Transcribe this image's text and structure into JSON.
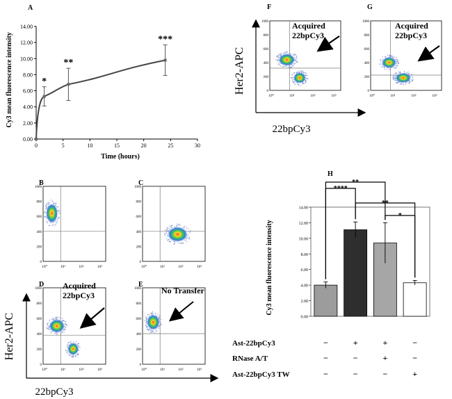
{
  "chart_data": [
    {
      "panel": "A",
      "type": "line",
      "x": [
        0,
        1.5,
        6,
        24
      ],
      "values": [
        0,
        5.3,
        6.8,
        9.8
      ],
      "errors": [
        0,
        1.2,
        2.0,
        1.9
      ],
      "significance": [
        "",
        "*",
        "**",
        "***"
      ],
      "xlabel": "Time (hours)",
      "ylabel": "Cy3 mean fluorescence intensity",
      "xlim": [
        0,
        30
      ],
      "ylim": [
        0,
        14
      ],
      "x_ticks": [
        "0",
        "5",
        "10",
        "15",
        "20",
        "25",
        "30"
      ],
      "y_ticks": [
        "0.00",
        "2.00",
        "4.00",
        "6.00",
        "8.00",
        "10.00",
        "12.00",
        "14.00"
      ]
    },
    {
      "panel": "H",
      "type": "bar",
      "categories": [
        "Ast-22bpCy3 (-), RNase A/T (-), TW (-)",
        "Ast-22bpCy3 (+)",
        "Ast-22bpCy3 (+) + RNase A/T",
        "Ast-22bpCy3 TW"
      ],
      "values": [
        4.0,
        11.1,
        9.4,
        4.3
      ],
      "errors": [
        0.4,
        1.0,
        2.6,
        0.3
      ],
      "colors": [
        "#9c9c9c",
        "#2e2e2e",
        "#a6a6a6",
        "#ffffff"
      ],
      "ylabel": "Cy3 mean fluorescence intensity",
      "ylim": [
        0,
        14
      ],
      "y_ticks": [
        "0.00",
        "2.00",
        "4.00",
        "6.00",
        "8.00",
        "10.00",
        "12.00",
        "14.00"
      ],
      "comparisons": [
        {
          "from": 0,
          "to": 2,
          "label": "**"
        },
        {
          "from": 0,
          "to": 1,
          "label": "****"
        },
        {
          "from": 1,
          "to": 3,
          "label": "**"
        },
        {
          "from": 2,
          "to": 3,
          "label": "*"
        }
      ]
    }
  ],
  "panels": {
    "A": "A",
    "B": "B",
    "C": "C",
    "D": "D",
    "E": "E",
    "F": "F",
    "G": "G",
    "H": "H"
  },
  "flow": {
    "x_ticks": [
      "10⁰",
      "10¹",
      "10²",
      "10³"
    ],
    "y_ticks": [
      "0",
      "200",
      "400",
      "600",
      "800",
      "1000"
    ],
    "d_label_line1": "Acquired",
    "d_label_line2": "22bpCy3",
    "e_label": "No Transfer",
    "f_label_line1": "Acquired",
    "f_label_line2": "22bpCy3",
    "g_label_line1": "Acquired",
    "g_label_line2": "22bpCy3"
  },
  "axes": {
    "bottom_y": "Her2-APC",
    "bottom_x": "22bpCy3",
    "top_y": "Her2-APC",
    "top_x": "22bpCy3"
  },
  "treatment_table": {
    "rows": [
      {
        "label": "Ast-22bpCy3",
        "signs": [
          "−",
          "+",
          "+",
          "−"
        ]
      },
      {
        "label": "RNase A/T",
        "signs": [
          "−",
          "−",
          "+",
          "−"
        ]
      },
      {
        "label": "Ast-22bpCy3 TW",
        "signs": [
          "−",
          "−",
          "−",
          "+"
        ]
      }
    ]
  }
}
